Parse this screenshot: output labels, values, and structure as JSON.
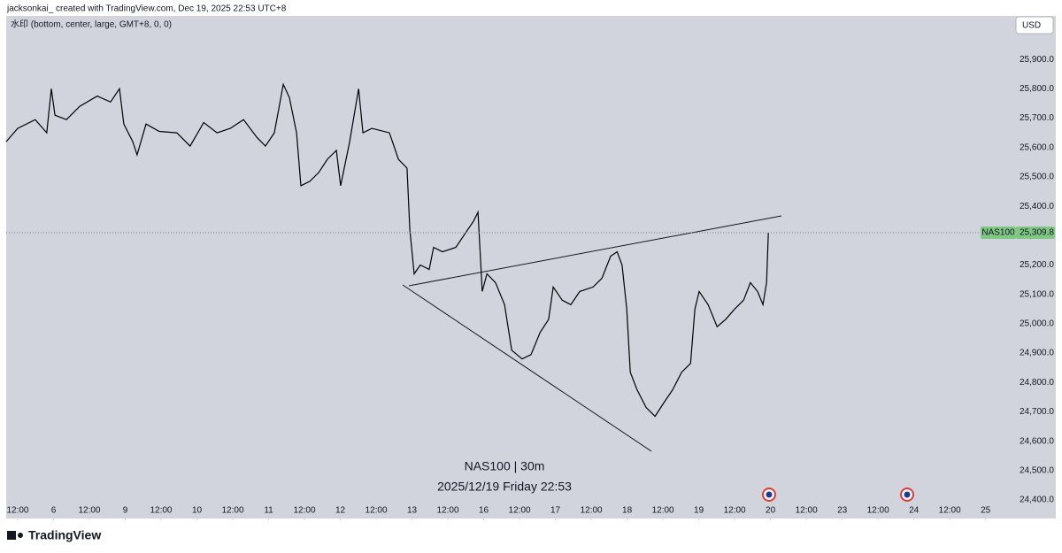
{
  "header": "jacksonkai_ created with TradingView.com, Dec 19, 2025 22:53 UTC+8",
  "watermark_settings": "水印 (bottom, center, large, GMT+8, 0, 0)",
  "currency": "USD",
  "watermark_line1": "NAS100 | 30m",
  "watermark_line2": "2025/12/19 Friday 22:53",
  "brand": "TradingView",
  "chart_data": {
    "type": "line",
    "color": "#000000",
    "symbol": "NAS100",
    "last_price": {
      "value": 25309.8,
      "label": "25,309.8"
    },
    "x": [
      -0.32,
      0,
      0.49,
      0.81,
      0.94,
      1.04,
      1.36,
      1.73,
      2.22,
      2.59,
      2.84,
      2.96,
      3.21,
      3.33,
      3.58,
      3.95,
      4.44,
      4.81,
      5.19,
      5.56,
      5.93,
      6.3,
      6.67,
      6.91,
      7.16,
      7.41,
      7.58,
      7.78,
      7.9,
      8.15,
      8.4,
      8.64,
      8.89,
      9.01,
      9.26,
      9.51,
      9.63,
      9.88,
      10.37,
      10.62,
      10.86,
      10.94,
      11.06,
      11.23,
      11.48,
      11.6,
      11.85,
      12.22,
      12.47,
      12.72,
      12.84,
      12.96,
      13.09,
      13.33,
      13.58,
      13.78,
      14.07,
      14.32,
      14.57,
      14.81,
      14.94,
      15.19,
      15.43,
      15.68,
      16.05,
      16.3,
      16.54,
      16.72,
      16.86,
      16.99,
      17.09,
      17.28,
      17.53,
      17.78,
      18.02,
      18.27,
      18.52,
      18.77,
      18.89,
      19.01,
      19.26,
      19.51,
      19.75,
      20,
      20.25,
      20.44,
      20.64,
      20.79,
      20.89,
      20.94
    ],
    "values": [
      25620,
      25665,
      25695,
      25650,
      25800,
      25710,
      25695,
      25740,
      25775,
      25755,
      25800,
      25680,
      25620,
      25575,
      25680,
      25655,
      25650,
      25605,
      25685,
      25650,
      25665,
      25695,
      25635,
      25605,
      25650,
      25815,
      25770,
      25650,
      25470,
      25485,
      25515,
      25560,
      25590,
      25470,
      25620,
      25800,
      25650,
      25665,
      25650,
      25560,
      25530,
      25320,
      25170,
      25200,
      25185,
      25260,
      25245,
      25260,
      25305,
      25350,
      25380,
      25110,
      25170,
      25140,
      25065,
      24910,
      24880,
      24895,
      24970,
      25015,
      25125,
      25080,
      25065,
      25110,
      25125,
      25155,
      25230,
      25245,
      25200,
      25050,
      24835,
      24775,
      24715,
      24685,
      24730,
      24775,
      24835,
      24865,
      25050,
      25110,
      25065,
      24990,
      25015,
      25050,
      25080,
      25140,
      25110,
      25065,
      25140,
      25310
    ],
    "xlim": [
      -0.32,
      27.65
    ],
    "xticks": [
      {
        "value": 0,
        "label": "12:00"
      },
      {
        "value": 1,
        "label": "6"
      },
      {
        "value": 2,
        "label": "12:00"
      },
      {
        "value": 3,
        "label": "9"
      },
      {
        "value": 4,
        "label": "12:00"
      },
      {
        "value": 5,
        "label": "10"
      },
      {
        "value": 6,
        "label": "12:00"
      },
      {
        "value": 7,
        "label": "11"
      },
      {
        "value": 8,
        "label": "12:00"
      },
      {
        "value": 9,
        "label": "12"
      },
      {
        "value": 10,
        "label": "12:00"
      },
      {
        "value": 11,
        "label": "13"
      },
      {
        "value": 12,
        "label": "12:00"
      },
      {
        "value": 13,
        "label": "16"
      },
      {
        "value": 14,
        "label": "12:00"
      },
      {
        "value": 15,
        "label": "17"
      },
      {
        "value": 16,
        "label": "12:00"
      },
      {
        "value": 17,
        "label": "18"
      },
      {
        "value": 18,
        "label": "12:00"
      },
      {
        "value": 19,
        "label": "19"
      },
      {
        "value": 20,
        "label": "12:00"
      },
      {
        "value": 21,
        "label": "20"
      },
      {
        "value": 22,
        "label": "12:00"
      },
      {
        "value": 23,
        "label": "23"
      },
      {
        "value": 24,
        "label": "12:00"
      },
      {
        "value": 25,
        "label": "24"
      },
      {
        "value": 26,
        "label": "12:00"
      },
      {
        "value": 27,
        "label": "25"
      }
    ],
    "ylim": [
      24340,
      26048
    ],
    "yticks": [
      {
        "value": 24400,
        "label": "24,400.0"
      },
      {
        "value": 24500,
        "label": "24,500.0"
      },
      {
        "value": 24600,
        "label": "24,600.0"
      },
      {
        "value": 24700,
        "label": "24,700.0"
      },
      {
        "value": 24800,
        "label": "24,800.0"
      },
      {
        "value": 24900,
        "label": "24,900.0"
      },
      {
        "value": 25000,
        "label": "25,000.0"
      },
      {
        "value": 25100,
        "label": "25,100.0"
      },
      {
        "value": 25200,
        "label": "25,200.0"
      },
      {
        "value": 25300,
        "label": "25,300.0"
      },
      {
        "value": 25400,
        "label": "25,400.0"
      },
      {
        "value": 25500,
        "label": "25,500.0"
      },
      {
        "value": 25600,
        "label": "25,600.0"
      },
      {
        "value": 25700,
        "label": "25,700.0"
      },
      {
        "value": 25800,
        "label": "25,800.0"
      },
      {
        "value": 25900,
        "label": "25,900.0"
      }
    ]
  }
}
